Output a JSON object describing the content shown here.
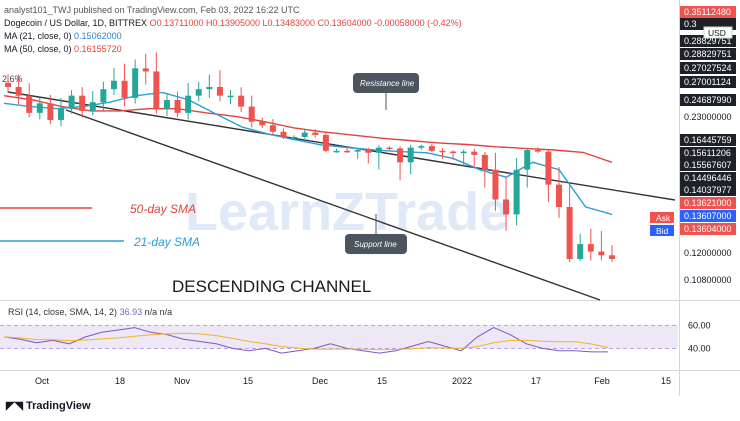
{
  "header": {
    "published": "analyst101_TWJ published on TradingView.com, Feb 03, 2022 16:22 UTC",
    "symbol": "Dogecoin / US Dollar, 1D, BITTREX",
    "ohlc": "O0.13711000 H0.13905000 L0.13483000 C0.13604000 -0.00058000 (-0.42%)",
    "ma21_label": "MA (21, close, 0)",
    "ma21_value": "0.15062000",
    "ma50_label": "MA (50, close, 0)",
    "ma50_value": "0.16155720",
    "edge_text": "2.6%"
  },
  "annotations": {
    "title": "DESCENDING CHANNEL",
    "resistance": "Resistance line",
    "support": "Support line",
    "sma50": "50-day SMA",
    "sma21": "21-day SMA",
    "watermark": "LearnZTrade"
  },
  "price_axis": {
    "currency": "USD",
    "labels": [
      "0.35112480",
      "0.3",
      "0.28829751",
      "0.28829751",
      "0.27027524",
      "0.27001124",
      "0.24687990",
      "0.23000000",
      "0.16445759",
      "0.15611206",
      "0.15567607",
      "0.14496446",
      "0.14037977",
      "0.13621000",
      "0.13607000",
      "0.13604000",
      "0.12000000",
      "0.10800000"
    ],
    "ask_label": "Ask",
    "bid_label": "Bid"
  },
  "rsi": {
    "label": "RSI (14, close, SMA, 14, 2)",
    "value": "36.93",
    "na": "n/a  n/a",
    "levels": [
      "60.00",
      "40.00"
    ]
  },
  "time_axis": [
    "Oct",
    "18",
    "Nov",
    "15",
    "Dec",
    "15",
    "2022",
    "17",
    "Feb",
    "15"
  ],
  "footer": {
    "brand": "TradingView"
  },
  "colors": {
    "up": "#26a69a",
    "down": "#ef5350",
    "ma21": "#2a9fd6",
    "ma50": "#e0443d",
    "channel": "#333333",
    "rsi": "#7e57c2",
    "rsi_band": "#ede7f6",
    "ask": "#ef5350",
    "bid": "#2962ff"
  },
  "chart_data": {
    "type": "candlestick",
    "x": [
      "Oct",
      "18",
      "Nov",
      "15",
      "Dec",
      "15",
      "2022",
      "17",
      "Feb",
      "15"
    ],
    "close_path": [
      0.27,
      0.262,
      0.246,
      0.255,
      0.238,
      0.25,
      0.262,
      0.248,
      0.256,
      0.268,
      0.274,
      0.26,
      0.282,
      0.28,
      0.25,
      0.258,
      0.246,
      0.262,
      0.268,
      0.27,
      0.262,
      0.262,
      0.252,
      0.236,
      0.232,
      0.218,
      0.204,
      0.205,
      0.216,
      0.21,
      0.17,
      0.17,
      0.168,
      0.172,
      0.165,
      0.178,
      0.176,
      0.162,
      0.178,
      0.182,
      0.17,
      0.168,
      0.166,
      0.168,
      0.164,
      0.16,
      0.152,
      0.148,
      0.16,
      0.172,
      0.168,
      0.156,
      0.15,
      0.136,
      0.14,
      0.138,
      0.137,
      0.136
    ],
    "ma21_path": [
      0.255,
      0.252,
      0.25,
      0.252,
      0.256,
      0.262,
      0.265,
      0.258,
      0.245,
      0.23,
      0.212,
      0.198,
      0.185,
      0.178,
      0.172,
      0.168,
      0.165,
      0.163,
      0.16,
      0.158,
      0.162,
      0.16,
      0.15,
      0.148
    ],
    "ma50_path": [
      0.262,
      0.258,
      0.252,
      0.248,
      0.248,
      0.25,
      0.25,
      0.246,
      0.242,
      0.236,
      0.228,
      0.218,
      0.21,
      0.202,
      0.196,
      0.19,
      0.186,
      0.18,
      0.176,
      0.172,
      0.166,
      0.162
    ],
    "rsi_path": [
      50,
      48,
      45,
      47,
      44,
      50,
      54,
      56,
      58,
      54,
      52,
      48,
      46,
      44,
      40,
      38,
      40,
      36,
      38,
      40,
      44,
      40,
      38,
      36,
      38,
      42,
      46,
      42,
      38,
      50,
      58,
      52,
      44,
      40,
      38,
      38,
      37,
      37
    ],
    "rsi_levels": [
      60,
      40
    ],
    "last_close": 0.13604
  }
}
